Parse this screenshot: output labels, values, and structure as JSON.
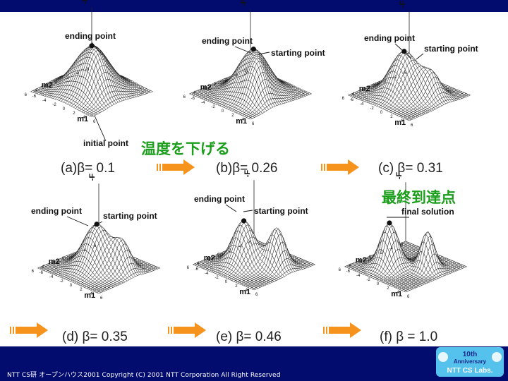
{
  "colors": {
    "bar": "#020b6e",
    "arrow": "#f5931d",
    "japanese_text": "#1b9e1b",
    "logo_bg": "#55c2ee",
    "logo_text": "#ffffff"
  },
  "annotations": {
    "temperature_lowering": "温度を下げる",
    "final_point": "最終到達点"
  },
  "panels": [
    {
      "caption": "(a)β= 0.1",
      "labels": [
        "ending point",
        "initial point"
      ]
    },
    {
      "caption": "(b)β= 0.26",
      "labels": [
        "ending point",
        "starting point"
      ]
    },
    {
      "caption": "(c) β= 0.31",
      "labels": [
        "ending point",
        "starting point"
      ]
    },
    {
      "caption": "(d) β= 0.35",
      "labels": [
        "ending point",
        "starting point"
      ]
    },
    {
      "caption": "(e) β= 0.46",
      "labels": [
        "ending point",
        "starting point"
      ]
    },
    {
      "caption": "(f) β = 1.0",
      "labels": [
        "final solution"
      ]
    }
  ],
  "axes": {
    "z_label": "-F",
    "x_label": "m1",
    "y_label": "m2",
    "ticks": [
      "-6",
      "-4",
      "-2",
      "0",
      "2",
      "4",
      "6"
    ]
  },
  "footer": {
    "copyright": "NTT CS研 オープンハウス2001  Copyright (C) 2001 NTT Corporation All Right  Reserved"
  },
  "logo": {
    "line1": "10th",
    "line2": "Anniversary",
    "line3": "NTT CS Labs."
  }
}
